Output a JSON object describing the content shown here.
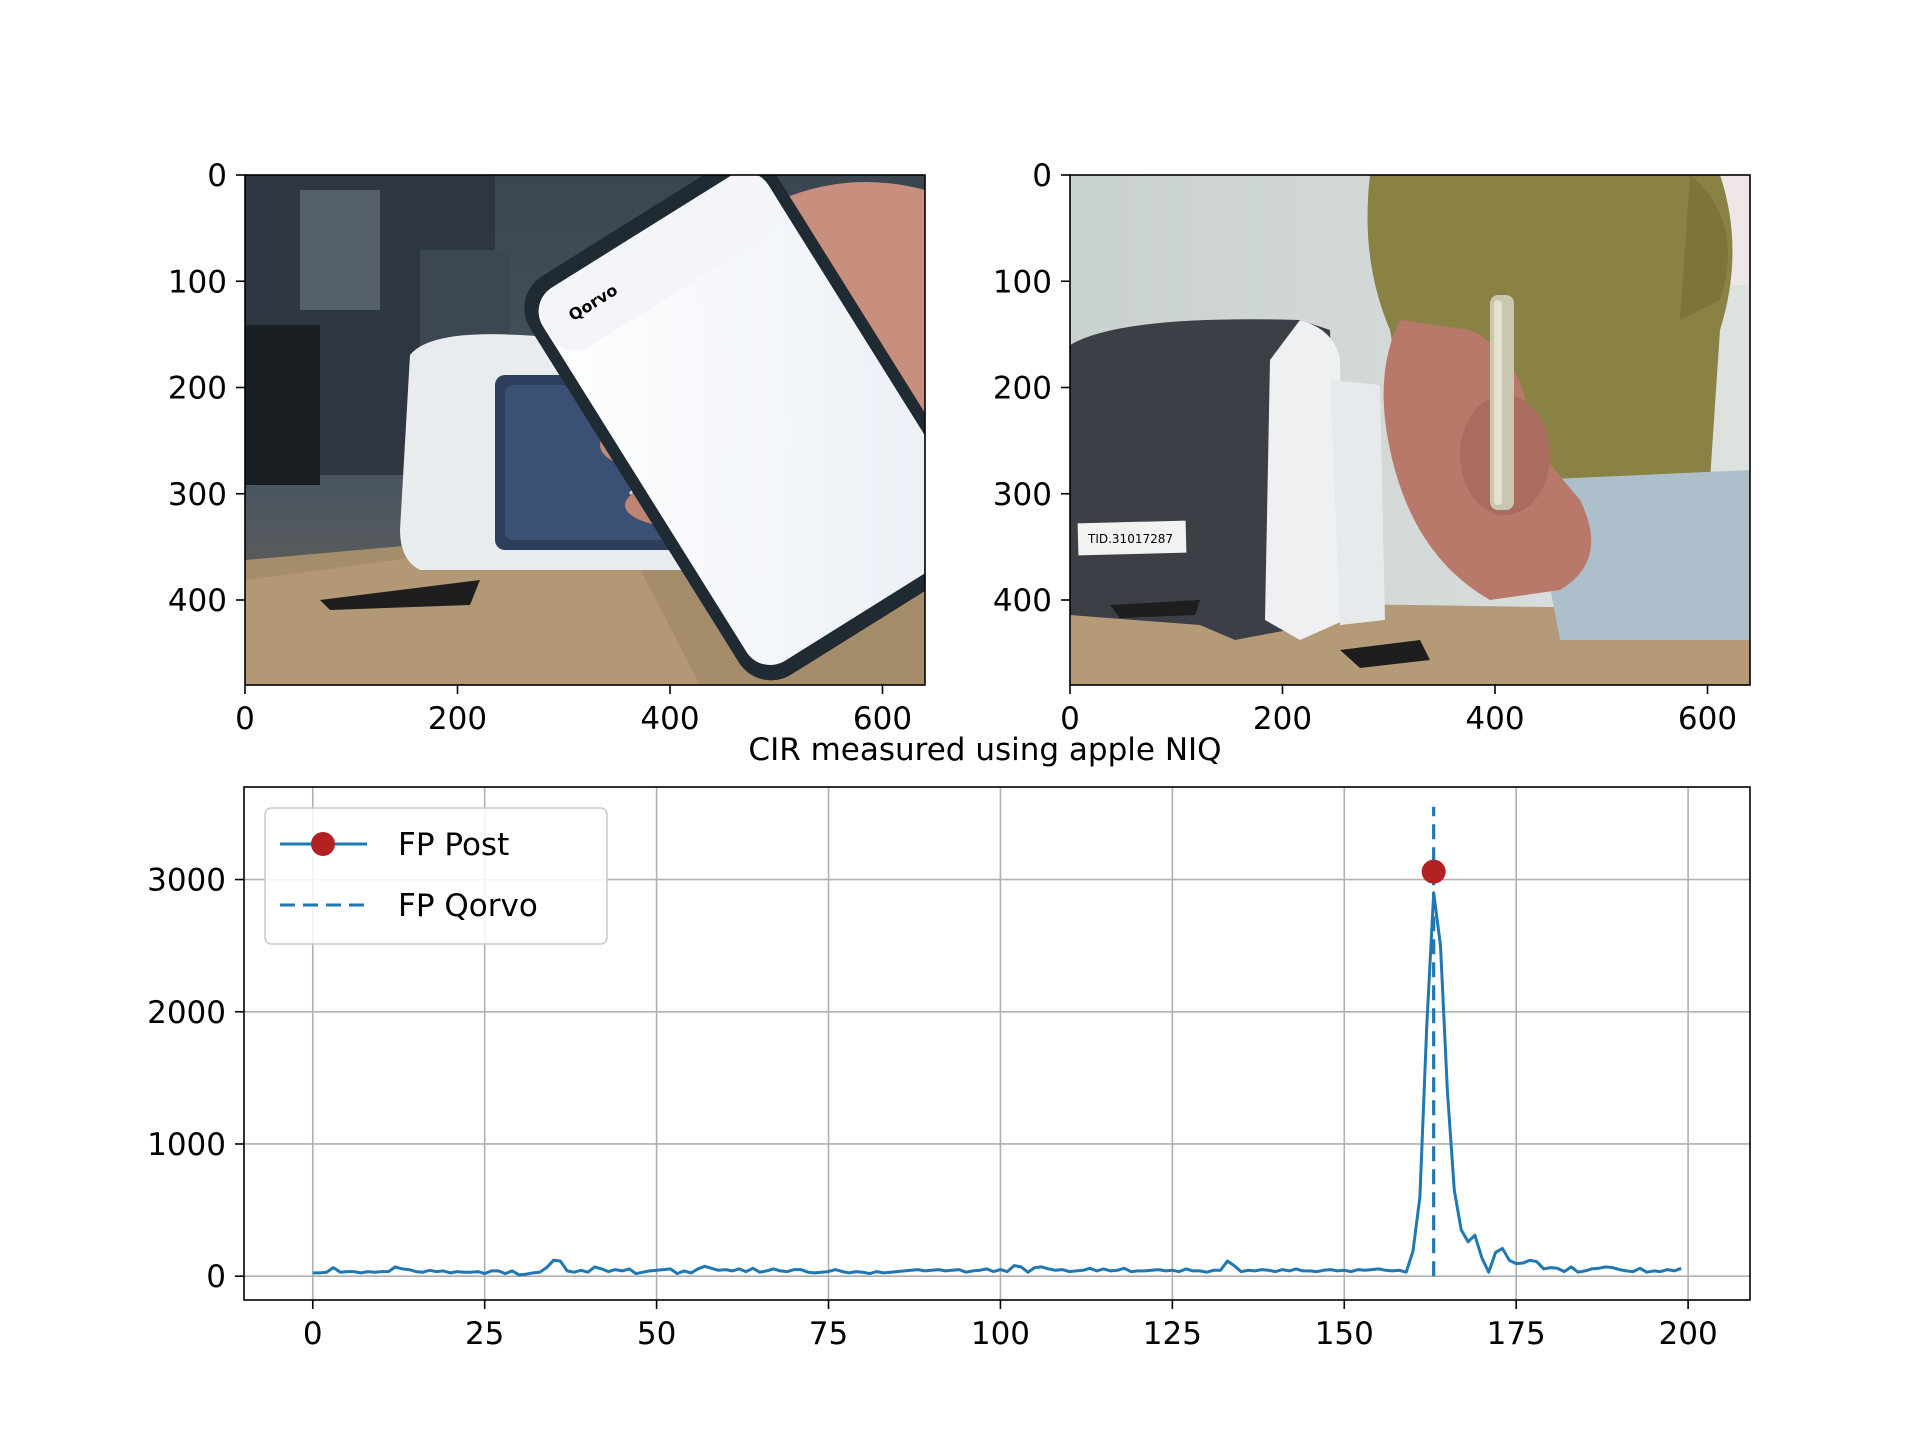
{
  "chart_data": [
    {
      "type": "image",
      "xlim": [
        0,
        640
      ],
      "ylim": [
        480,
        0
      ],
      "x_ticks": [
        0,
        200,
        400,
        600
      ],
      "y_ticks": [
        0,
        100,
        200,
        300,
        400
      ],
      "x_tick_labels": [
        "0",
        "200",
        "400",
        "600"
      ],
      "y_tick_labels": [
        "0",
        "100",
        "200",
        "300",
        "400"
      ],
      "content": "camera photo: hand holding smartphone showing Qorvo app over white payment terminal",
      "visible_text": {
        "terminal_label": ""
      }
    },
    {
      "type": "image",
      "xlim": [
        0,
        640
      ],
      "ylim": [
        480,
        0
      ],
      "x_ticks": [
        0,
        200,
        400,
        600
      ],
      "y_ticks": [
        0,
        100,
        200,
        300,
        400
      ],
      "x_tick_labels": [
        "0",
        "200",
        "400",
        "600"
      ],
      "y_tick_labels": [
        "0",
        "100",
        "200",
        "300",
        "400"
      ],
      "content": "camera photo: person in olive shirt holding smartphone upright next to grey terminal",
      "visible_text": {
        "terminal_label": "TID.31017287"
      }
    },
    {
      "type": "line",
      "title": "CIR measured using apple NIQ",
      "xlabel": "",
      "ylabel": "",
      "xlim": [
        -10,
        209
      ],
      "ylim": [
        -180,
        3700
      ],
      "x_ticks": [
        0,
        25,
        50,
        75,
        100,
        125,
        150,
        175,
        200
      ],
      "y_ticks": [
        0,
        1000,
        2000,
        3000
      ],
      "x_tick_labels": [
        "0",
        "25",
        "50",
        "75",
        "100",
        "125",
        "150",
        "175",
        "200"
      ],
      "y_tick_labels": [
        "0",
        "1000",
        "2000",
        "3000"
      ],
      "grid": true,
      "legend": "upper-left",
      "series": [
        {
          "name": "FP Post",
          "color": "#1f77b4",
          "marker_color": "#b22222",
          "marker_x": 163,
          "marker_y": 3060,
          "x_start": 0,
          "values": [
            25,
            25,
            30,
            65,
            30,
            35,
            35,
            25,
            35,
            30,
            35,
            35,
            70,
            55,
            50,
            35,
            30,
            45,
            35,
            40,
            25,
            35,
            30,
            30,
            35,
            20,
            40,
            40,
            20,
            40,
            10,
            15,
            25,
            30,
            65,
            120,
            115,
            40,
            30,
            45,
            30,
            70,
            55,
            35,
            50,
            40,
            55,
            20,
            30,
            40,
            45,
            50,
            55,
            20,
            40,
            25,
            55,
            75,
            60,
            45,
            50,
            40,
            55,
            35,
            60,
            30,
            40,
            55,
            40,
            35,
            50,
            50,
            30,
            25,
            30,
            35,
            50,
            35,
            25,
            35,
            30,
            20,
            35,
            25,
            30,
            35,
            40,
            45,
            50,
            40,
            45,
            50,
            40,
            45,
            50,
            30,
            40,
            45,
            55,
            35,
            50,
            35,
            80,
            70,
            30,
            65,
            70,
            55,
            45,
            50,
            35,
            40,
            45,
            60,
            40,
            55,
            40,
            45,
            60,
            35,
            40,
            40,
            45,
            50,
            40,
            45,
            35,
            55,
            40,
            40,
            30,
            45,
            45,
            115,
            80,
            35,
            45,
            40,
            50,
            45,
            35,
            50,
            40,
            55,
            40,
            40,
            35,
            45,
            50,
            40,
            45,
            35,
            50,
            45,
            50,
            55,
            45,
            40,
            45,
            30,
            190,
            600,
            1900,
            2900,
            2500,
            1400,
            650,
            350,
            260,
            310,
            140,
            30,
            180,
            210,
            120,
            95,
            100,
            120,
            110,
            55,
            65,
            60,
            35,
            70,
            30,
            40,
            55,
            60,
            70,
            65,
            50,
            40,
            35,
            60,
            30,
            40,
            35,
            50,
            40,
            60
          ]
        },
        {
          "name": "FP Qorvo",
          "color": "#1f77b4",
          "style": "dashed",
          "x": 163,
          "y_range": [
            0,
            3550
          ]
        }
      ]
    }
  ]
}
